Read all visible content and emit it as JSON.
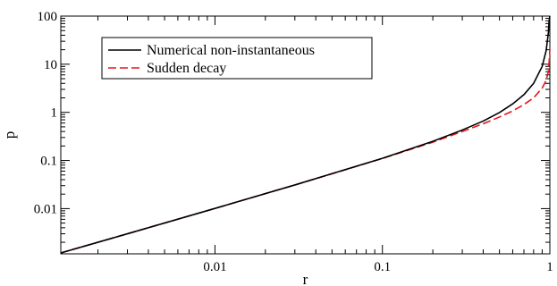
{
  "chart_data": {
    "type": "line",
    "title": "",
    "xlabel": "r",
    "ylabel": "p",
    "xscale": "log",
    "yscale": "log",
    "xlim": [
      0.0012,
      1.0
    ],
    "ylim": [
      0.00115,
      100
    ],
    "x_ticks": [
      {
        "value": 0.01,
        "label": "0.01"
      },
      {
        "value": 0.1,
        "label": "0.1"
      },
      {
        "value": 1,
        "label": "1"
      }
    ],
    "y_ticks": [
      {
        "value": 0.01,
        "label": "0.01"
      },
      {
        "value": 0.1,
        "label": "0.1"
      },
      {
        "value": 1,
        "label": "1"
      },
      {
        "value": 10,
        "label": "10"
      },
      {
        "value": 100,
        "label": "100"
      }
    ],
    "grid": false,
    "legend": "top-left",
    "series": [
      {
        "name": "Numerical non-instantaneous",
        "color": "#000000",
        "dash": "solid",
        "x": [
          0.0012,
          0.003,
          0.01,
          0.03,
          0.1,
          0.2,
          0.3,
          0.4,
          0.5,
          0.6,
          0.7,
          0.8,
          0.9,
          0.95,
          0.98,
          0.99,
          1.0
        ],
        "y": [
          0.0012,
          0.003,
          0.0101,
          0.031,
          0.111,
          0.25,
          0.43,
          0.66,
          0.99,
          1.5,
          2.33,
          4.0,
          9.0,
          19.0,
          45.0,
          80.0,
          100.0
        ]
      },
      {
        "name": "Sudden decay",
        "color": "#e8141c",
        "dash": "dashed",
        "x": [
          0.0012,
          0.003,
          0.01,
          0.03,
          0.1,
          0.2,
          0.3,
          0.4,
          0.5,
          0.6,
          0.7,
          0.8,
          0.9,
          0.95,
          0.98,
          0.99,
          1.0
        ],
        "y": [
          0.0012,
          0.003,
          0.0101,
          0.031,
          0.11,
          0.24,
          0.4,
          0.58,
          0.8,
          1.07,
          1.45,
          2.0,
          3.2,
          4.6,
          7.0,
          11.0,
          20.0
        ]
      }
    ]
  }
}
